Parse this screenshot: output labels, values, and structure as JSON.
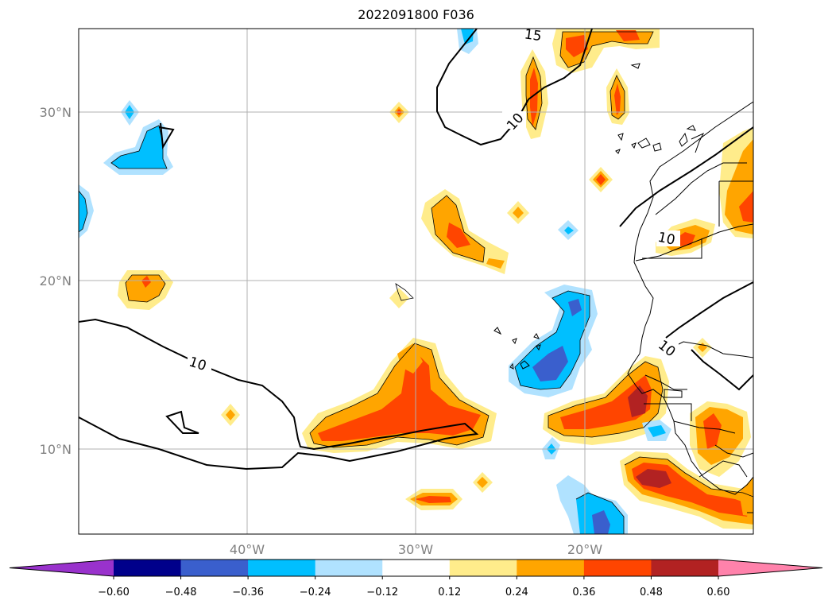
{
  "title": "2022091800 F036",
  "map": {
    "lat_labels": [
      "30°N",
      "20°N",
      "10°N"
    ],
    "lon_labels": [
      "40°W",
      "30°W",
      "20°W"
    ],
    "contour_labels": [
      "15",
      "10",
      "10",
      "10",
      "10"
    ]
  },
  "colorbar": {
    "ticks": [
      "−0.60",
      "−0.48",
      "−0.36",
      "−0.24",
      "−0.12",
      "0.12",
      "0.24",
      "0.36",
      "0.48",
      "0.60"
    ],
    "colors": [
      "#9932cc",
      "#00008b",
      "#3a5fcd",
      "#00bfff",
      "#b0e2ff",
      "#ffffff",
      "#ffec8b",
      "#ffa500",
      "#ff4500",
      "#b22222",
      "#ff82ab"
    ]
  },
  "colors": {
    "yellow": "#ffec8b",
    "orange": "#ffa500",
    "red_orange": "#ff4500",
    "dark_red": "#b22222",
    "light_blue": "#b0e2ff",
    "deep_sky_blue": "#00bfff",
    "royal_blue": "#3a5fcd",
    "grid": "#b0b0b0"
  }
}
